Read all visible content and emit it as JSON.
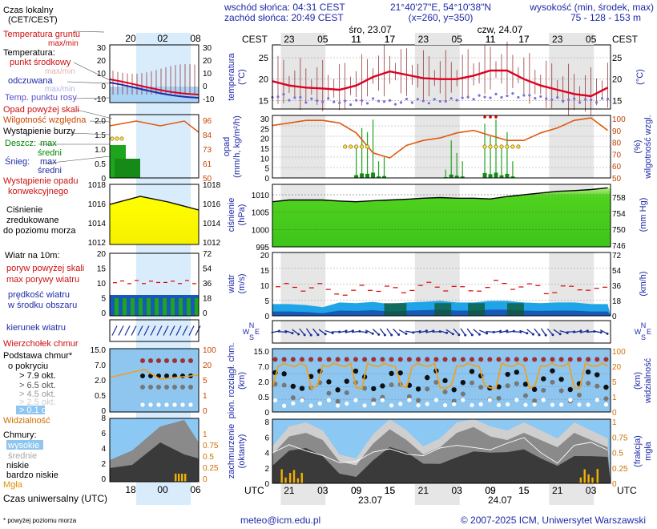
{
  "header": {
    "sunrise": "wschód słońca: 04:31 CEST",
    "sunset": "zachód słońca: 20:49 CEST",
    "coords": "21°40'27\"E, 54°10'38\"N",
    "grid": "(x=260, y=350)",
    "elev_title": "wysokość (min, środek, max)",
    "elev_values": "75 - 128 - 153 m"
  },
  "legend": {
    "time_local": "Czas lokalny",
    "time_local_sub": "(CET/CEST)",
    "time_ticks": [
      "20",
      "02",
      "08"
    ],
    "soil_temp": "Temperatura gruntu",
    "max_min": "max/min",
    "temperature": "Temperatura:",
    "mid_point": "punkt środkowy",
    "max_min_faded": "max/min",
    "felt": "odczuwana",
    "felt_max_min": "max/min",
    "dew_point": "Temp. punktu rosy",
    "temp_ticks": [
      "30",
      "20",
      "10",
      "0",
      "-10"
    ],
    "precip_above": "Opad powyżej skali",
    "humidity": "Wilgotność względna",
    "storm": "Wystąpienie burzy",
    "rain": "Deszcz:",
    "rain_max": "max",
    "rain_mid": "średni",
    "snow": "Śnieg:",
    "snow_max": "max",
    "snow_mid": "średni",
    "convective": "Wystąpienie opadu",
    "convective2": "konwekcyjnego",
    "precip_ticks": [
      "2.0",
      "1.5",
      "1.0",
      "0.5",
      "0"
    ],
    "humid_ticks": [
      "96",
      "84",
      "73",
      "61",
      "50"
    ],
    "pressure_1": "Ciśnienie",
    "pressure_2": "zredukowane",
    "pressure_3": "do poziomu morza",
    "press_ticks": [
      "1018",
      "1016",
      "1014",
      "1012"
    ],
    "wind_title": "Wiatr na 10m:",
    "gust_above": "poryw powyżej skali",
    "gust_max": "max porywy wiatru",
    "wind_speed_1": "prędkość wiatru",
    "wind_speed_2": "w środku obszaru",
    "wind_ticks": [
      "20",
      "15",
      "10",
      "5",
      "0"
    ],
    "wind_kmh_ticks": [
      "72",
      "54",
      "36",
      "18",
      "0"
    ],
    "wind_dir": "kierunek wiatru",
    "windsock": "Wierzchołek chmur",
    "cloud_base_1": "Podstawa chmur*",
    "cloud_base_2": "o pokryciu",
    "oct_79": "> 7.9 okt.",
    "oct_65": "> 6.5 okt.",
    "oct_45": "> 4.5 okt.",
    "oct_25": "> 2.5 okt.",
    "oct_01": "> 0.1 okt.",
    "cb_ticks": [
      "15.0",
      "7.0",
      "2.0",
      "0.5",
      "0"
    ],
    "vis_ticks": [
      "100",
      "20",
      "5",
      "1",
      "0"
    ],
    "visibility": "Widzialność",
    "clouds": "Chmury:",
    "high": "wysokie",
    "mid": "średnie",
    "low": "niskie",
    "very_low": "bardzo niskie",
    "fog": "Mgła",
    "cloud_ticks": [
      "8",
      "6",
      "4",
      "2",
      "0"
    ],
    "fog_ticks": [
      "1",
      "0.75",
      "0.5",
      "0.25",
      "0"
    ],
    "utc_ticks": [
      "18",
      "00",
      "06"
    ],
    "utc_title": "Czas uniwersalny (UTC)",
    "footnote": "* powyżej poziomu morza"
  },
  "main": {
    "cest": "CEST",
    "utc": "UTC",
    "day1": "śro, 23.07",
    "day2": "czw, 24.07",
    "date1": "23.07",
    "date2": "24.07",
    "cest_ticks": [
      "23",
      "05",
      "11",
      "17",
      "23",
      "05",
      "11",
      "17",
      "23",
      "05"
    ],
    "utc_ticks": [
      "21",
      "03",
      "09",
      "15",
      "21",
      "03",
      "09",
      "15",
      "21",
      "03"
    ],
    "temp_label": "temperatura",
    "temp_unit": "(°C)",
    "temp_ticks": [
      "25",
      "20",
      "15"
    ],
    "precip_label": "opad",
    "precip_unit": "(mm/h, kg/m²/h)",
    "precip_ticks": [
      "30",
      "25",
      "20",
      "15",
      "10",
      "5",
      "0"
    ],
    "humid_label": "wilgotność wzgl.",
    "humid_unit": "(%)",
    "humid_ticks": [
      "100",
      "90",
      "80",
      "70",
      "60",
      "50"
    ],
    "press_label": "ciśnienie",
    "press_unit": "(hPa)",
    "press_ticks": [
      "1010",
      "1005",
      "1000",
      "995"
    ],
    "press_mm_label": "(mm Hg)",
    "press_mm_ticks": [
      "758",
      "754",
      "750",
      "746"
    ],
    "wind_label": "wiatr",
    "wind_unit": "(m/s)",
    "wind_ticks": [
      "20",
      "15",
      "10",
      "5",
      "0"
    ],
    "wind_kmh_unit": "(km/h)",
    "wind_kmh_ticks": [
      "72",
      "54",
      "36",
      "18",
      "0"
    ],
    "cb_label": "pion. rozciągł. chm.",
    "cb_unit": "(km)",
    "cb_ticks": [
      "15.0",
      "7.0",
      "2.0",
      "0.5",
      "0"
    ],
    "vis_label": "widzialność",
    "vis_unit": "(km)",
    "vis_ticks": [
      "100",
      "20",
      "5",
      "1",
      "0"
    ],
    "cloud_label": "zachmurzenie",
    "cloud_unit": "(oktanty)",
    "cloud_ticks": [
      "8",
      "6",
      "4",
      "2",
      "0"
    ],
    "fog_label": "mgła",
    "fog_unit": "(frakcja)",
    "fog_ticks": [
      "1",
      "0.75",
      "0.5",
      "0.25",
      "0"
    ],
    "compass": {
      "n": "N",
      "w": "W",
      "e": "E",
      "s": "S"
    }
  },
  "footer": {
    "email": "meteo@icm.edu.pl",
    "copyright": "© 2007-2025 ICM, Uniwersytet Warszawski"
  },
  "colors": {
    "night": "#e6e6e6",
    "temp": "#dd0022",
    "dew": "#7a70d8",
    "humid": "#e05a10",
    "press_fill": "#4fd21e",
    "press_fill_top": "#b6f08a",
    "wind_band": "#1858b8",
    "wind_light": "#1fa4e8",
    "cb_bg": "#8ec6f0",
    "vis": "#f0a020",
    "gust": "#dd0000",
    "arrow": "#1a2a9a"
  },
  "chart_data": [
    {
      "type": "line",
      "name": "temperature",
      "x_hours_utc": [
        18,
        21,
        0,
        3,
        6,
        9,
        12,
        15,
        18,
        21,
        0,
        3,
        6,
        9,
        12,
        15,
        18,
        21,
        0,
        3,
        4
      ],
      "y_mid": [
        19.5,
        18.5,
        18,
        17.8,
        17.5,
        18.5,
        20.5,
        21.8,
        21,
        20.2,
        20,
        20,
        20.8,
        22,
        22,
        20,
        18.5,
        17.5,
        16.5,
        16,
        18
      ],
      "y_dew": [
        16,
        15.5,
        15,
        15,
        14.5,
        14.8,
        15,
        14.5,
        15,
        14.8,
        15,
        15.5,
        15.8,
        16,
        16.2,
        16,
        15.5,
        15.2,
        15,
        15,
        15.5
      ],
      "ylim": [
        13,
        28
      ]
    },
    {
      "type": "line",
      "name": "humidity",
      "y_percent": [
        92,
        94,
        96,
        96,
        94,
        86,
        70,
        66,
        76,
        80,
        82,
        86,
        88,
        84,
        80,
        80,
        86,
        90,
        96,
        98,
        88
      ],
      "ylim": [
        50,
        100
      ]
    },
    {
      "type": "area",
      "name": "pressure",
      "y_hpa": [
        1008,
        1008.5,
        1008.5,
        1008.5,
        1008.2,
        1008,
        1008.3,
        1008.5,
        1008.7,
        1009,
        1009.2,
        1009,
        1009,
        1008.8,
        1009.5,
        1010,
        1010.5,
        1011,
        1011.2,
        1011.5,
        1012
      ],
      "ylim": [
        995,
        1013
      ]
    },
    {
      "type": "area",
      "name": "wind",
      "y_speed": [
        2.5,
        2.5,
        2.2,
        1.5,
        3,
        2.8,
        3.2,
        2.5,
        3,
        3.2,
        3.5,
        3,
        3,
        3.5,
        3.5,
        3,
        2.8,
        3,
        3,
        2.5,
        2.5
      ],
      "y_gust": [
        9,
        9,
        9,
        8,
        7,
        9,
        8.5,
        8,
        9,
        9.5,
        9,
        8,
        9,
        10,
        9.5,
        9,
        8,
        8.5,
        9,
        8,
        8
      ],
      "ylim": [
        0,
        20
      ]
    },
    {
      "type": "area",
      "name": "clouds",
      "y_octants": [
        4,
        6.5,
        7,
        6,
        3,
        2.5,
        5.5,
        7.5,
        6,
        4,
        5,
        7,
        7.8,
        6.5,
        6,
        7,
        6,
        5,
        7,
        6,
        5
      ],
      "ylim": [
        0,
        8
      ]
    }
  ]
}
